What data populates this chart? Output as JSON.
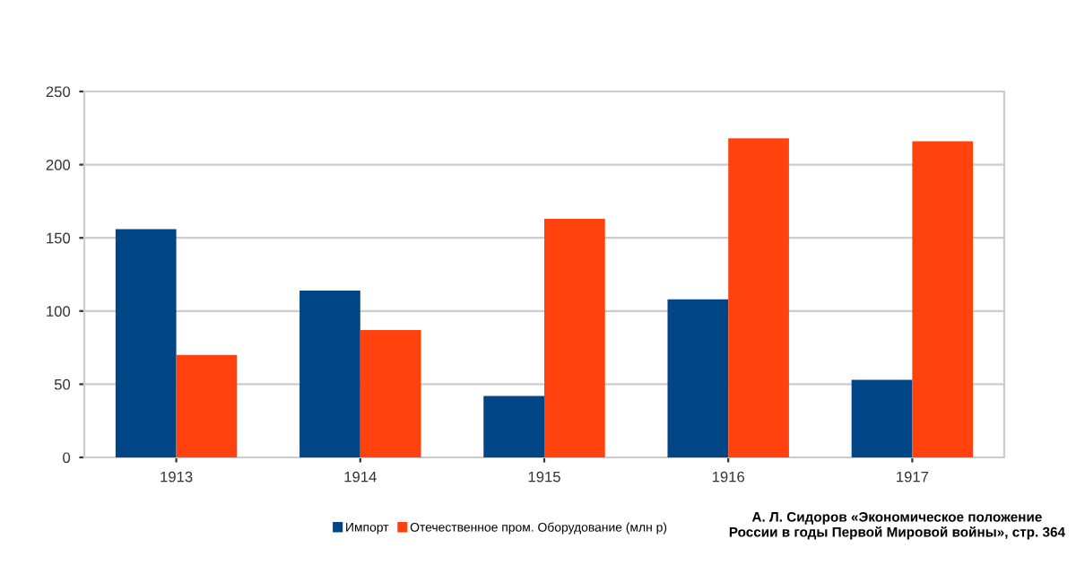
{
  "chart_data": {
    "type": "bar",
    "categories": [
      "1913",
      "1914",
      "1915",
      "1916",
      "1917"
    ],
    "series": [
      {
        "name": "Импорт",
        "color": "#004586",
        "values": [
          156,
          114,
          42,
          108,
          53
        ]
      },
      {
        "name": "Отечественное пром. Оборудование (млн р)",
        "color": "#ff420e",
        "values": [
          70,
          87,
          163,
          218,
          216
        ]
      }
    ],
    "ylim": [
      0,
      250
    ],
    "yticks": [
      0,
      50,
      100,
      150,
      200,
      250
    ],
    "grid": "y",
    "legend": "bottom",
    "annotations": [
      "А. Л. Сидоров «Экономическое положение\nРоссии в годы Первой Мировой войны», стр. 364"
    ]
  }
}
